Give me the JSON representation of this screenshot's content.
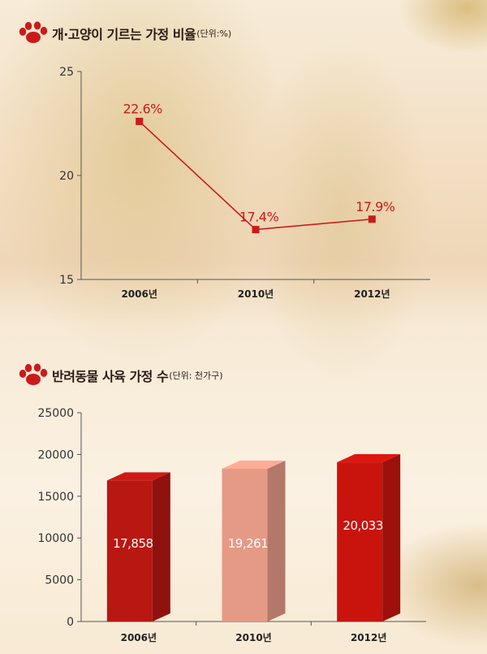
{
  "charts_meta": {
    "top": {
      "title": "개·고양이 기르는 가정 비율",
      "unit": "(단위:%)"
    },
    "bottom": {
      "title": "반려동물 사육 가정 수",
      "unit": "(단위: 천가구)"
    }
  },
  "chart_data": [
    {
      "type": "line",
      "title": "개·고양이 기르는 가정 비율",
      "subtitle": "(단위:%)",
      "categories": [
        "2006년",
        "2010년",
        "2012년"
      ],
      "series": [
        {
          "values": [
            22.6,
            17.4,
            17.9
          ]
        }
      ],
      "data_labels": [
        "22.6%",
        "17.4%",
        "17.9%"
      ],
      "yticks": [
        "15",
        "20",
        "25"
      ],
      "ylim": [
        15,
        25
      ],
      "grid": false,
      "color": "#cc1a1a"
    },
    {
      "type": "bar",
      "title": "반려동물 사육 가정 수",
      "subtitle": "(단위: 천가구)",
      "categories": [
        "2006년",
        "2010년",
        "2012년"
      ],
      "values": [
        17858,
        19261,
        20033
      ],
      "data_labels": [
        "17,858",
        "19,261",
        "20,033"
      ],
      "yticks": [
        "0",
        "5000",
        "10000",
        "15000",
        "20000",
        "25000"
      ],
      "ylim": [
        0,
        25000
      ],
      "grid": false,
      "colors": [
        "#b81712",
        "#e59a86",
        "#c9140e"
      ]
    }
  ]
}
